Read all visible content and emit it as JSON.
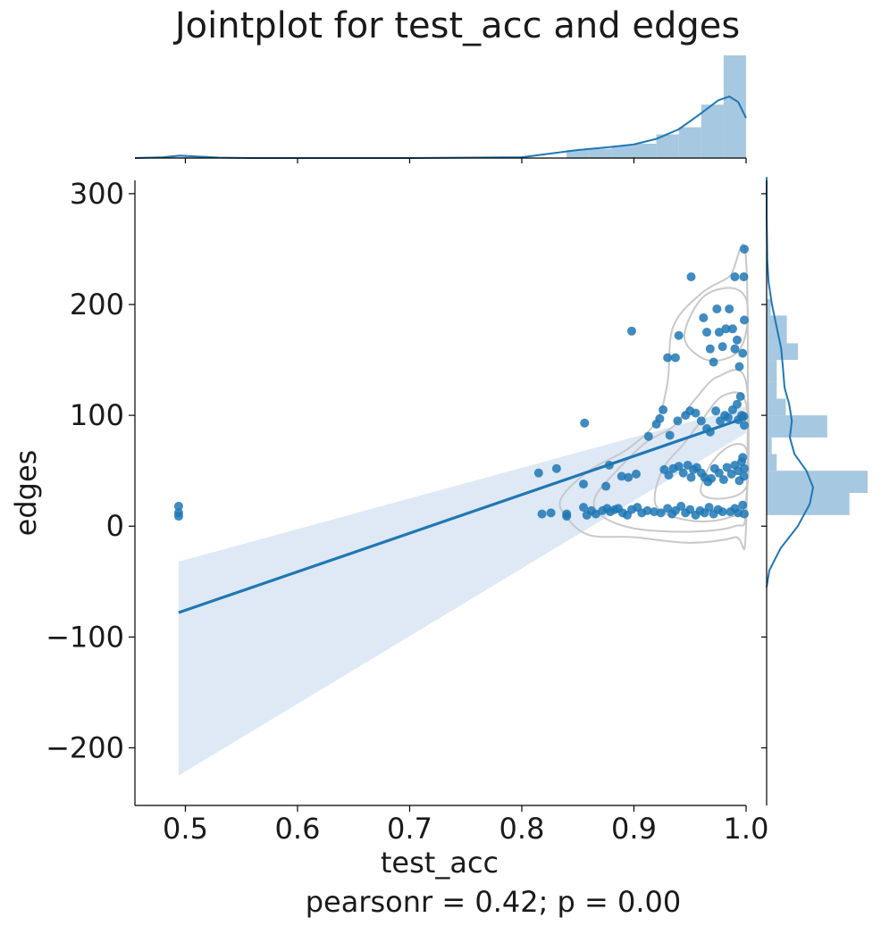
{
  "chart_data": {
    "type": "scatter",
    "title": "Jointplot for test_acc and edges",
    "xlabel": "test_acc",
    "ylabel": "edges",
    "annotation": "pearsonr = 0.42; p = 0.00",
    "xlim": [
      0.455,
      1.0
    ],
    "ylim": [
      -252,
      312
    ],
    "x_ticks": [
      0.5,
      0.6,
      0.7,
      0.8,
      0.9,
      1.0
    ],
    "x_tick_labels": [
      "0.5",
      "0.6",
      "0.7",
      "0.8",
      "0.9",
      "1.0"
    ],
    "y_ticks": [
      300,
      200,
      100,
      0,
      -100,
      -200
    ],
    "y_tick_labels": [
      "300",
      "200",
      "100",
      "0",
      "−100",
      "−200"
    ],
    "grid": false,
    "colors": {
      "points": "#1f77b4",
      "regression_line": "#1f77b4",
      "confidence_band": "#dce8f4",
      "histogram": "#a6c8e0",
      "kde": "#1f77b4",
      "contour": "#c8c8c8"
    },
    "regression": {
      "x": [
        0.494,
        1.0
      ],
      "y": [
        -78,
        98
      ],
      "ci_lower": [
        -225,
        84
      ],
      "ci_upper": [
        -32,
        108
      ]
    },
    "points": [
      [
        0.494,
        18
      ],
      [
        0.494,
        12
      ],
      [
        0.494,
        9
      ],
      [
        0.815,
        48
      ],
      [
        0.831,
        52
      ],
      [
        0.856,
        93
      ],
      [
        0.855,
        38
      ],
      [
        0.875,
        36
      ],
      [
        0.878,
        55
      ],
      [
        0.898,
        176
      ],
      [
        0.889,
        45
      ],
      [
        0.895,
        44
      ],
      [
        0.902,
        47
      ],
      [
        0.818,
        11
      ],
      [
        0.826,
        12
      ],
      [
        0.84,
        11
      ],
      [
        0.84,
        9
      ],
      [
        0.855,
        17
      ],
      [
        0.858,
        10
      ],
      [
        0.862,
        14
      ],
      [
        0.866,
        11
      ],
      [
        0.872,
        14
      ],
      [
        0.876,
        16
      ],
      [
        0.879,
        13
      ],
      [
        0.883,
        15
      ],
      [
        0.886,
        16
      ],
      [
        0.89,
        12
      ],
      [
        0.894,
        10
      ],
      [
        0.898,
        15
      ],
      [
        0.903,
        17
      ],
      [
        0.907,
        12
      ],
      [
        0.912,
        14
      ],
      [
        0.918,
        13
      ],
      [
        0.924,
        12
      ],
      [
        0.913,
        81
      ],
      [
        0.92,
        92
      ],
      [
        0.923,
        97
      ],
      [
        0.926,
        105
      ],
      [
        0.932,
        82
      ],
      [
        0.939,
        95
      ],
      [
        0.946,
        100
      ],
      [
        0.95,
        104
      ],
      [
        0.955,
        102
      ],
      [
        0.96,
        95
      ],
      [
        0.965,
        88
      ],
      [
        0.968,
        85
      ],
      [
        0.927,
        51
      ],
      [
        0.931,
        46
      ],
      [
        0.935,
        52
      ],
      [
        0.94,
        54
      ],
      [
        0.944,
        48
      ],
      [
        0.948,
        55
      ],
      [
        0.951,
        44
      ],
      [
        0.953,
        51
      ],
      [
        0.956,
        53
      ],
      [
        0.96,
        48
      ],
      [
        0.963,
        44
      ],
      [
        0.966,
        40
      ],
      [
        0.969,
        43
      ],
      [
        0.972,
        52
      ],
      [
        0.976,
        48
      ],
      [
        0.98,
        42
      ],
      [
        0.93,
        16
      ],
      [
        0.934,
        11
      ],
      [
        0.937,
        14
      ],
      [
        0.942,
        18
      ],
      [
        0.946,
        12
      ],
      [
        0.95,
        15
      ],
      [
        0.955,
        10
      ],
      [
        0.959,
        14
      ],
      [
        0.963,
        12
      ],
      [
        0.967,
        17
      ],
      [
        0.971,
        11
      ],
      [
        0.975,
        15
      ],
      [
        0.979,
        13
      ],
      [
        0.93,
        152
      ],
      [
        0.937,
        152
      ],
      [
        0.94,
        172
      ],
      [
        0.951,
        225
      ],
      [
        0.962,
        188
      ],
      [
        0.965,
        175
      ],
      [
        0.968,
        160
      ],
      [
        0.971,
        148
      ],
      [
        0.974,
        196
      ],
      [
        0.976,
        175
      ],
      [
        0.979,
        162
      ],
      [
        0.982,
        178
      ],
      [
        0.985,
        196
      ],
      [
        0.988,
        178
      ],
      [
        0.99,
        160
      ],
      [
        0.992,
        168
      ],
      [
        0.994,
        144
      ],
      [
        0.997,
        156
      ],
      [
        0.999,
        186
      ],
      [
        0.998,
        225
      ],
      [
        0.999,
        250
      ],
      [
        0.99,
        225
      ],
      [
        0.973,
        104
      ],
      [
        0.977,
        95
      ],
      [
        0.981,
        100
      ],
      [
        0.984,
        98
      ],
      [
        0.988,
        105
      ],
      [
        0.992,
        110
      ],
      [
        0.995,
        117
      ],
      [
        0.998,
        99
      ],
      [
        0.999,
        91
      ],
      [
        0.996,
        100
      ],
      [
        0.993,
        96
      ],
      [
        0.983,
        53
      ],
      [
        0.987,
        47
      ],
      [
        0.99,
        55
      ],
      [
        0.993,
        50
      ],
      [
        0.996,
        58
      ],
      [
        0.998,
        45
      ],
      [
        0.999,
        52
      ],
      [
        0.997,
        62
      ],
      [
        0.994,
        41
      ],
      [
        0.986,
        13
      ],
      [
        0.99,
        16
      ],
      [
        0.993,
        12
      ],
      [
        0.997,
        19
      ],
      [
        0.999,
        11
      ]
    ],
    "marginal_x_histogram": {
      "bin_edges": [
        0.455,
        0.5,
        0.52,
        0.84,
        0.86,
        0.88,
        0.9,
        0.92,
        0.94,
        0.96,
        0.98,
        1.0
      ],
      "densities": [
        0.01,
        0.02,
        0.0,
        0.08,
        0.09,
        0.12,
        0.14,
        0.23,
        0.3,
        0.52,
        1.0
      ]
    },
    "marginal_x_kde": {
      "x": [
        0.455,
        0.48,
        0.495,
        0.51,
        0.53,
        0.56,
        0.6,
        0.7,
        0.8,
        0.85,
        0.88,
        0.9,
        0.92,
        0.94,
        0.96,
        0.975,
        0.985,
        0.993,
        1.0
      ],
      "density": [
        0.0,
        0.01,
        0.03,
        0.02,
        0.005,
        0.0,
        0.0,
        0.0,
        0.01,
        0.1,
        0.14,
        0.17,
        0.24,
        0.36,
        0.56,
        0.72,
        0.77,
        0.7,
        0.5
      ]
    },
    "marginal_y_histogram": {
      "bin_edges": [
        10,
        30,
        50,
        65,
        80,
        100,
        115,
        130,
        150,
        165,
        190,
        205,
        225
      ],
      "densities": [
        0.82,
        1.0,
        0.1,
        0.05,
        0.6,
        0.19,
        0.1,
        0.1,
        0.31,
        0.2,
        0.04,
        0.0
      ]
    },
    "marginal_y_kde": {
      "y": [
        -55,
        -40,
        -20,
        0,
        20,
        35,
        50,
        65,
        80,
        95,
        110,
        125,
        140,
        160,
        180,
        200,
        220,
        240,
        260,
        280,
        300,
        315
      ],
      "density": [
        0.0,
        0.04,
        0.21,
        0.47,
        0.65,
        0.7,
        0.6,
        0.42,
        0.35,
        0.38,
        0.34,
        0.27,
        0.25,
        0.22,
        0.15,
        0.08,
        0.03,
        0.01,
        0.005,
        0.0,
        0.0,
        0.0
      ]
    }
  }
}
